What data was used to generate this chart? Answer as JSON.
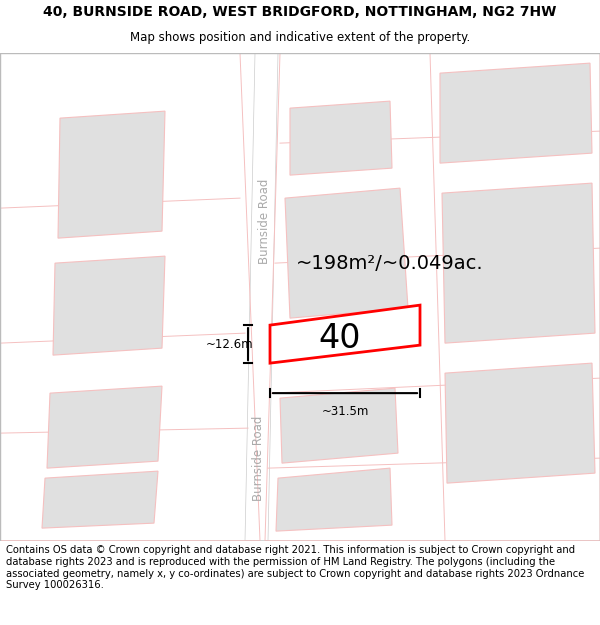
{
  "title_line1": "40, BURNSIDE ROAD, WEST BRIDGFORD, NOTTINGHAM, NG2 7HW",
  "title_line2": "Map shows position and indicative extent of the property.",
  "footer_text": "Contains OS data © Crown copyright and database right 2021. This information is subject to Crown copyright and database rights 2023 and is reproduced with the permission of HM Land Registry. The polygons (including the associated geometry, namely x, y co-ordinates) are subject to Crown copyright and database rights 2023 Ordnance Survey 100026316.",
  "property_label": "40",
  "area_text": "~198m²/~0.049ac.",
  "dim_width": "~31.5m",
  "dim_height": "~12.6m",
  "road_label_1": "Burnside Road",
  "road_label_2": "Burnside Road",
  "map_bg": "#ffffff",
  "building_fill": "#e0e0e0",
  "building_edge": "#f5c0c0",
  "road_line_color": "#dddddd",
  "block_outline_color": "#f5c0c0",
  "property_edge": "#ff0000",
  "property_fill": "#ffffff",
  "dim_line_color": "#000000",
  "area_text_color": "#000000",
  "road_label_color": "#aaaaaa",
  "title_fontsize": 10,
  "subtitle_fontsize": 8.5,
  "footer_fontsize": 7.2,
  "area_fontsize": 14,
  "property_label_fontsize": 24,
  "dim_fontsize": 8.5,
  "road_fontsize": 8.5
}
